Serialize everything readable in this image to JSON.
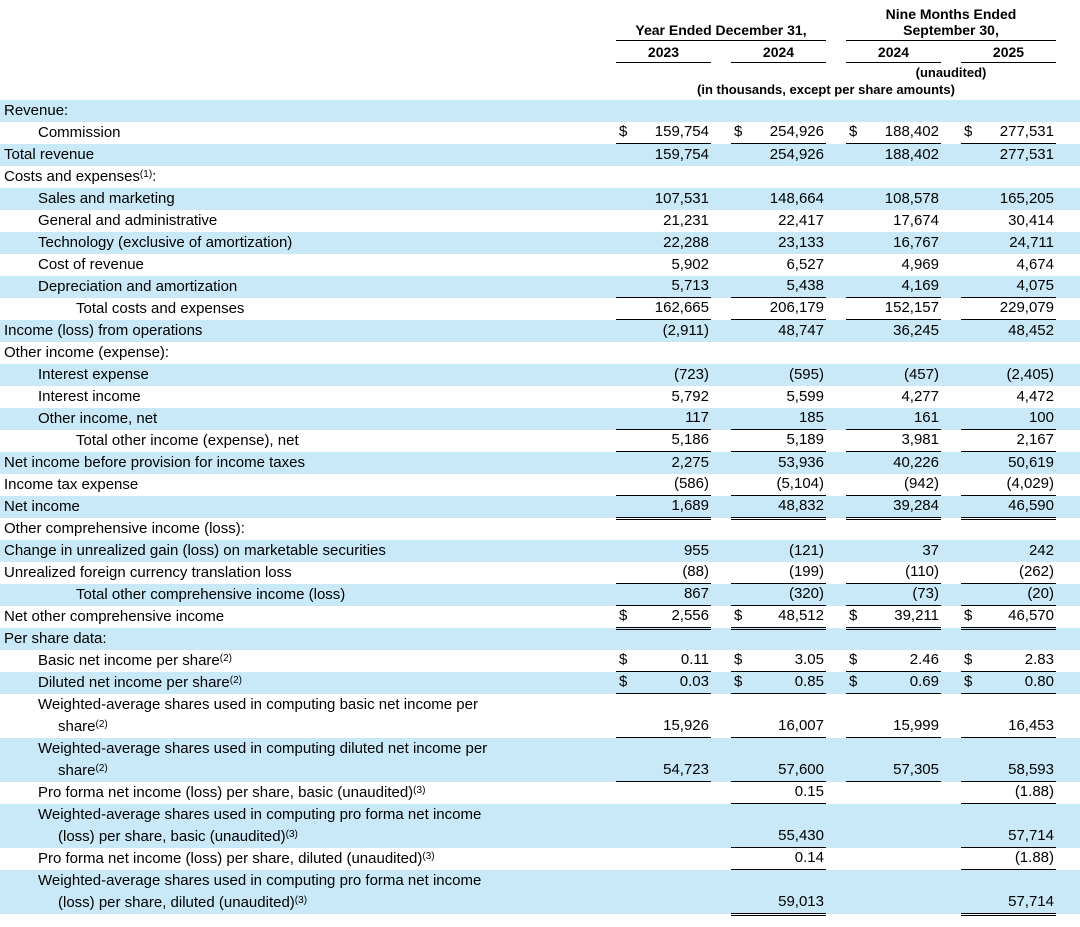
{
  "meta": {
    "dollar_sign": "$"
  },
  "colors": {
    "row_shade": "#c9e9f8",
    "text": "#000000",
    "rule": "#000000"
  },
  "header": {
    "group1_title": "Year Ended December 31,",
    "group2_title_line1": "Nine Months Ended",
    "group2_title_line2": "September 30,",
    "col_years": [
      "2023",
      "2024",
      "2024",
      "2025"
    ],
    "unaudited_note": "(unaudited)",
    "units_note": "(in thousands, except per share amounts)"
  },
  "rows": [
    {
      "label": "Revenue:",
      "indent": 0,
      "shade": true,
      "dollar": false,
      "underline": "none",
      "values": [
        "",
        "",
        "",
        ""
      ]
    },
    {
      "label": "Commission",
      "indent": 1,
      "shade": false,
      "dollar": true,
      "underline": "single",
      "values": [
        "159,754",
        "254,926",
        "188,402",
        "277,531"
      ]
    },
    {
      "label": "Total revenue",
      "indent": 0,
      "shade": true,
      "dollar": false,
      "underline": "none",
      "values": [
        "159,754",
        "254,926",
        "188,402",
        "277,531"
      ]
    },
    {
      "label": "Costs and expenses",
      "sup": "(1)",
      "suffix": ":",
      "indent": 0,
      "shade": false,
      "dollar": false,
      "underline": "none",
      "values": [
        "",
        "",
        "",
        ""
      ]
    },
    {
      "label": "Sales and marketing",
      "indent": 1,
      "shade": true,
      "dollar": false,
      "underline": "none",
      "values": [
        "107,531",
        "148,664",
        "108,578",
        "165,205"
      ]
    },
    {
      "label": "General and administrative",
      "indent": 1,
      "shade": false,
      "dollar": false,
      "underline": "none",
      "values": [
        "21,231",
        "22,417",
        "17,674",
        "30,414"
      ]
    },
    {
      "label": "Technology (exclusive of amortization)",
      "indent": 1,
      "shade": true,
      "dollar": false,
      "underline": "none",
      "values": [
        "22,288",
        "23,133",
        "16,767",
        "24,711"
      ]
    },
    {
      "label": "Cost of revenue",
      "indent": 1,
      "shade": false,
      "dollar": false,
      "underline": "none",
      "values": [
        "5,902",
        "6,527",
        "4,969",
        "4,674"
      ]
    },
    {
      "label": "Depreciation and amortization",
      "indent": 1,
      "shade": true,
      "dollar": false,
      "underline": "single",
      "values": [
        "5,713",
        "5,438",
        "4,169",
        "4,075"
      ]
    },
    {
      "label": "Total costs and expenses",
      "indent": 2,
      "shade": false,
      "dollar": false,
      "underline": "single",
      "values": [
        "162,665",
        "206,179",
        "152,157",
        "229,079"
      ]
    },
    {
      "label": "Income (loss) from operations",
      "indent": 0,
      "shade": true,
      "dollar": false,
      "underline": "none",
      "values": [
        "(2,911)",
        "48,747",
        "36,245",
        "48,452"
      ]
    },
    {
      "label": "Other income (expense):",
      "indent": 0,
      "shade": false,
      "dollar": false,
      "underline": "none",
      "values": [
        "",
        "",
        "",
        ""
      ]
    },
    {
      "label": "Interest expense",
      "indent": 1,
      "shade": true,
      "dollar": false,
      "underline": "none",
      "values": [
        "(723)",
        "(595)",
        "(457)",
        "(2,405)"
      ]
    },
    {
      "label": "Interest income",
      "indent": 1,
      "shade": false,
      "dollar": false,
      "underline": "none",
      "values": [
        "5,792",
        "5,599",
        "4,277",
        "4,472"
      ]
    },
    {
      "label": "Other income, net",
      "indent": 1,
      "shade": true,
      "dollar": false,
      "underline": "single",
      "values": [
        "117",
        "185",
        "161",
        "100"
      ]
    },
    {
      "label": "Total other income (expense), net",
      "indent": 2,
      "shade": false,
      "dollar": false,
      "underline": "single",
      "values": [
        "5,186",
        "5,189",
        "3,981",
        "2,167"
      ]
    },
    {
      "label": "Net income before provision for income taxes",
      "indent": 0,
      "shade": true,
      "dollar": false,
      "underline": "none",
      "values": [
        "2,275",
        "53,936",
        "40,226",
        "50,619"
      ]
    },
    {
      "label": "Income tax expense",
      "indent": 0,
      "shade": false,
      "dollar": false,
      "underline": "single",
      "values": [
        "(586)",
        "(5,104)",
        "(942)",
        "(4,029)"
      ]
    },
    {
      "label": "Net income",
      "indent": 0,
      "shade": true,
      "dollar": false,
      "underline": "double",
      "values": [
        "1,689",
        "48,832",
        "39,284",
        "46,590"
      ]
    },
    {
      "label": "Other comprehensive income (loss):",
      "indent": 0,
      "shade": false,
      "dollar": false,
      "underline": "none",
      "values": [
        "",
        "",
        "",
        ""
      ]
    },
    {
      "label": "Change in unrealized gain (loss) on marketable securities",
      "indent": 0,
      "shade": true,
      "dollar": false,
      "underline": "none",
      "values": [
        "955",
        "(121)",
        "37",
        "242"
      ]
    },
    {
      "label": "Unrealized foreign currency translation loss",
      "indent": 0,
      "shade": false,
      "dollar": false,
      "underline": "single",
      "values": [
        "(88)",
        "(199)",
        "(110)",
        "(262)"
      ]
    },
    {
      "label": "Total other comprehensive income (loss)",
      "indent": 2,
      "shade": true,
      "dollar": false,
      "underline": "single",
      "values": [
        "867",
        "(320)",
        "(73)",
        "(20)"
      ]
    },
    {
      "label": "Net other comprehensive income",
      "indent": 0,
      "shade": false,
      "dollar": true,
      "underline": "double",
      "values": [
        "2,556",
        "48,512",
        "39,211",
        "46,570"
      ]
    },
    {
      "label": "Per share data:",
      "indent": 0,
      "shade": true,
      "dollar": false,
      "underline": "none",
      "values": [
        "",
        "",
        "",
        ""
      ]
    },
    {
      "label": "Basic net income per share",
      "sup": "(2)",
      "indent": 1,
      "shade": false,
      "dollar": true,
      "underline": "single",
      "values": [
        "0.11",
        "3.05",
        "2.46",
        "2.83"
      ]
    },
    {
      "label": "Diluted net income per share",
      "sup": "(2)",
      "indent": 1,
      "shade": true,
      "dollar": true,
      "underline": "single",
      "values": [
        "0.03",
        "0.85",
        "0.69",
        "0.80"
      ]
    },
    {
      "label": "Weighted-average shares used in computing basic net income per",
      "label2": "share",
      "sup": "(2)",
      "indent": 1,
      "shade": false,
      "dollar": false,
      "underline": "single",
      "values": [
        "15,926",
        "16,007",
        "15,999",
        "16,453"
      ]
    },
    {
      "label": "Weighted-average shares used in computing diluted net income per",
      "label2": "share",
      "sup": "(2)",
      "indent": 1,
      "shade": true,
      "dollar": false,
      "underline": "single",
      "values": [
        "54,723",
        "57,600",
        "57,305",
        "58,593"
      ]
    },
    {
      "label": "Pro forma net income (loss) per share, basic (unaudited)",
      "sup": "(3)",
      "indent": 1,
      "shade": false,
      "dollar": false,
      "underline": "single",
      "values": [
        "",
        "0.15",
        "",
        "(1.88)"
      ]
    },
    {
      "label": "Weighted-average shares used in computing pro forma net income",
      "label2": "(loss) per share, basic (unaudited)",
      "sup": "(3)",
      "indent": 1,
      "shade": true,
      "dollar": false,
      "underline": "single",
      "values": [
        "",
        "55,430",
        "",
        "57,714"
      ]
    },
    {
      "label": "Pro forma net income (loss) per share, diluted (unaudited)",
      "sup": "(3)",
      "indent": 1,
      "shade": false,
      "dollar": false,
      "underline": "single",
      "values": [
        "",
        "0.14",
        "",
        "(1.88)"
      ]
    },
    {
      "label": "Weighted-average shares used in computing pro forma net income",
      "label2": "(loss) per share, diluted (unaudited)",
      "sup": "(3)",
      "indent": 1,
      "shade": true,
      "dollar": false,
      "underline": "double",
      "values": [
        "",
        "59,013",
        "",
        "57,714"
      ]
    }
  ]
}
